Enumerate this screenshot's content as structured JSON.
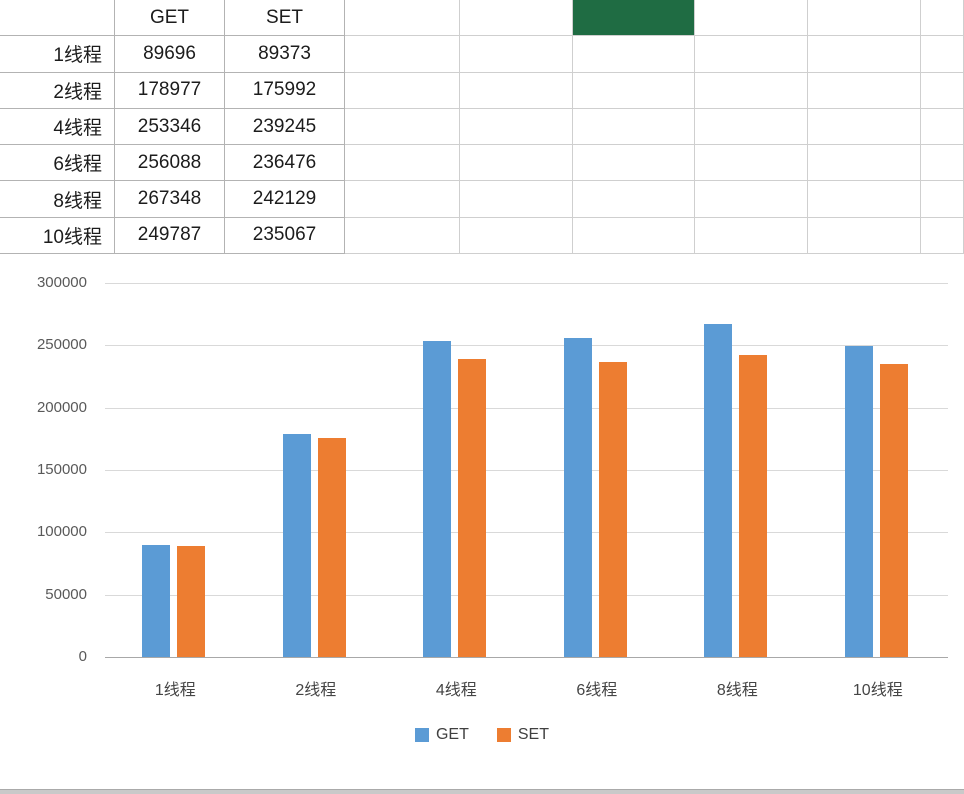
{
  "table": {
    "columns": [
      "GET",
      "SET"
    ],
    "rows": [
      {
        "label": "1线程",
        "get": "89696",
        "set": "89373"
      },
      {
        "label": "2线程",
        "get": "178977",
        "set": "175992"
      },
      {
        "label": "4线程",
        "get": "253346",
        "set": "239245"
      },
      {
        "label": "6线程",
        "get": "256088",
        "set": "236476"
      },
      {
        "label": "8线程",
        "get": "267348",
        "set": "242129"
      },
      {
        "label": "10线程",
        "get": "249787",
        "set": "235067"
      }
    ],
    "filled_cell_color": "#1F6C43"
  },
  "chart_data": {
    "type": "bar",
    "title": "",
    "xlabel": "",
    "ylabel": "",
    "categories": [
      "1线程",
      "2线程",
      "4线程",
      "6线程",
      "8线程",
      "10线程"
    ],
    "series": [
      {
        "name": "GET",
        "color": "#5B9BD5",
        "values": [
          89696,
          178977,
          253346,
          256088,
          267348,
          249787
        ]
      },
      {
        "name": "SET",
        "color": "#ED7D31",
        "values": [
          89373,
          175992,
          239245,
          236476,
          242129,
          235067
        ]
      }
    ],
    "ylim": [
      0,
      300000
    ],
    "yticks": [
      0,
      50000,
      100000,
      150000,
      200000,
      250000,
      300000
    ],
    "grid": true,
    "legend_position": "bottom"
  }
}
